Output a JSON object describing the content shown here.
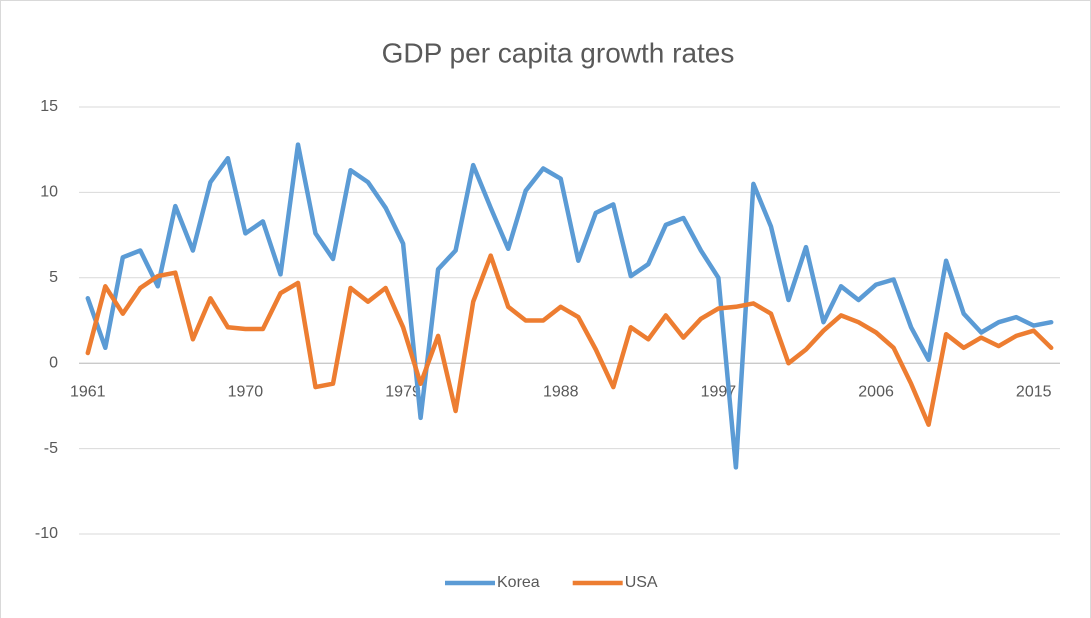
{
  "chart_data": {
    "type": "line",
    "title": "GDP per capita growth rates",
    "categories": [
      1961,
      null,
      null,
      null,
      null,
      null,
      null,
      null,
      null,
      1970,
      null,
      null,
      null,
      null,
      null,
      null,
      null,
      null,
      1979,
      null,
      null,
      null,
      null,
      null,
      null,
      null,
      null,
      1988,
      null,
      null,
      null,
      null,
      null,
      null,
      null,
      null,
      1997,
      null,
      null,
      null,
      null,
      null,
      null,
      null,
      null,
      2006,
      null,
      null,
      null,
      null,
      null,
      null,
      null,
      null,
      2015,
      null
    ],
    "series": [
      {
        "name": "Korea",
        "color": "#5b9bd5",
        "values": [
          3.8,
          0.9,
          6.2,
          6.6,
          4.5,
          9.2,
          6.6,
          10.6,
          12.0,
          7.6,
          8.3,
          5.2,
          12.8,
          7.6,
          6.1,
          11.3,
          10.6,
          9.1,
          7.0,
          -3.2,
          5.5,
          6.6,
          11.6,
          9.1,
          6.7,
          10.1,
          11.4,
          10.8,
          6.0,
          8.8,
          9.3,
          5.1,
          5.8,
          8.1,
          8.5,
          6.6,
          5.0,
          -6.1,
          10.5,
          8.0,
          3.7,
          6.8,
          2.4,
          4.5,
          3.7,
          4.6,
          4.9,
          2.1,
          0.2,
          6.0,
          2.9,
          1.8,
          2.4,
          2.7,
          2.2,
          2.4
        ]
      },
      {
        "name": "USA",
        "color": "#ed7d31",
        "values": [
          0.6,
          4.5,
          2.9,
          4.4,
          5.1,
          5.3,
          1.4,
          3.8,
          2.1,
          2.0,
          2.0,
          4.1,
          4.7,
          -1.4,
          -1.2,
          4.4,
          3.6,
          4.4,
          2.1,
          -1.2,
          1.6,
          -2.8,
          3.6,
          6.3,
          3.3,
          2.5,
          2.5,
          3.3,
          2.7,
          0.8,
          -1.4,
          2.1,
          1.4,
          2.8,
          1.5,
          2.6,
          3.2,
          3.3,
          3.5,
          2.9,
          0.0,
          0.8,
          1.9,
          2.8,
          2.4,
          1.8,
          0.9,
          -1.2,
          -3.6,
          1.7,
          0.9,
          1.5,
          1.0,
          1.6,
          1.9,
          0.9
        ]
      }
    ],
    "ylim": [
      -10,
      15
    ],
    "yticks": [
      -10,
      -5,
      0,
      5,
      10,
      15
    ],
    "grid": true,
    "legend": "bottom"
  }
}
